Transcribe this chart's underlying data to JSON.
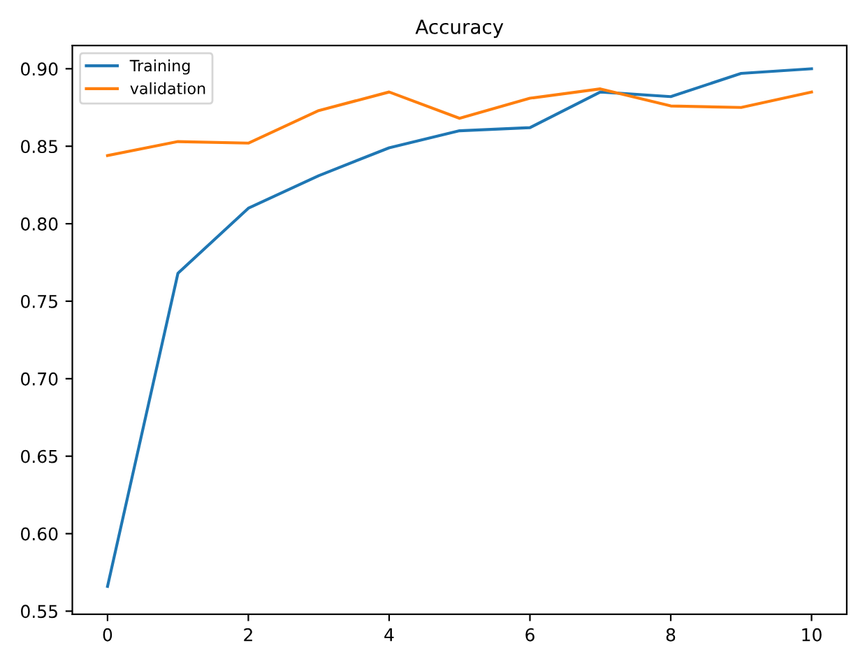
{
  "chart_data": {
    "type": "line",
    "title": "Accuracy",
    "x": [
      0,
      1,
      2,
      3,
      4,
      5,
      6,
      7,
      8,
      9,
      10
    ],
    "series": [
      {
        "name": "Training",
        "color": "#1f77b4",
        "values": [
          0.566,
          0.768,
          0.81,
          0.831,
          0.849,
          0.86,
          0.862,
          0.885,
          0.882,
          0.897,
          0.9
        ]
      },
      {
        "name": "validation",
        "color": "#ff7f0e",
        "values": [
          0.844,
          0.853,
          0.852,
          0.873,
          0.885,
          0.868,
          0.881,
          0.887,
          0.876,
          0.875,
          0.885
        ]
      }
    ],
    "xlim": [
      -0.5,
      10.5
    ],
    "ylim": [
      0.548,
      0.915
    ],
    "xticks": [
      0,
      2,
      4,
      6,
      8,
      10
    ],
    "yticks": [
      {
        "value": 0.55,
        "label": "0.55"
      },
      {
        "value": 0.6,
        "label": "0.60"
      },
      {
        "value": 0.65,
        "label": "0.65"
      },
      {
        "value": 0.7,
        "label": "0.70"
      },
      {
        "value": 0.75,
        "label": "0.75"
      },
      {
        "value": 0.8,
        "label": "0.80"
      },
      {
        "value": 0.85,
        "label": "0.85"
      },
      {
        "value": 0.9,
        "label": "0.90"
      }
    ],
    "legend": "top left",
    "grid": false
  }
}
